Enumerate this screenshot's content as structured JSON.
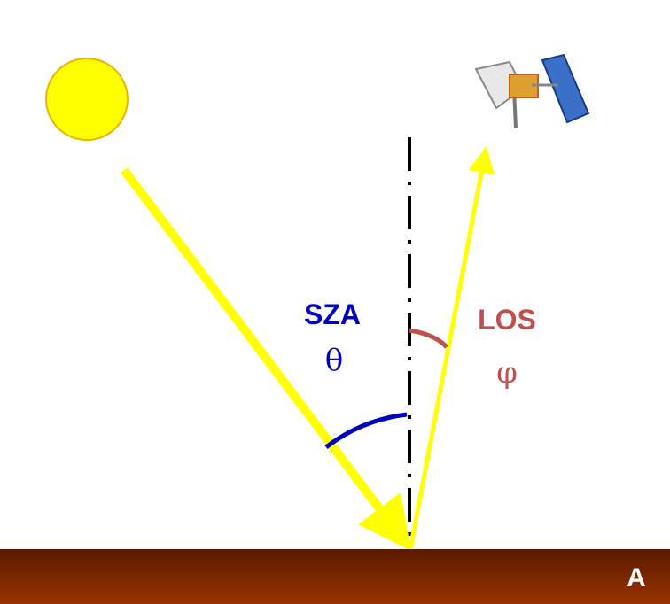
{
  "labels": {
    "sza": "SZA",
    "theta": "θ",
    "los": "LOS",
    "phi": "φ",
    "point": "A"
  }
}
